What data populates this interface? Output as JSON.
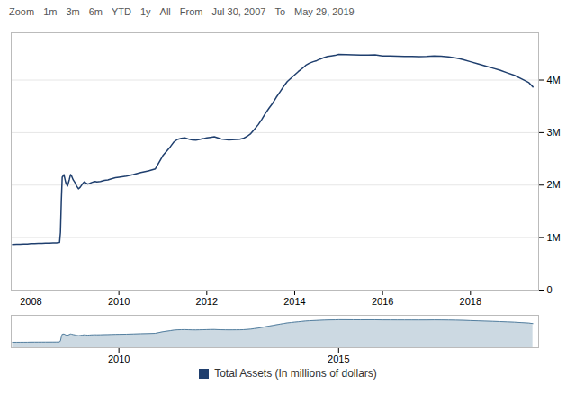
{
  "chart_data": [
    {
      "type": "line",
      "annotations": [
        "Zoom",
        "1m",
        "3m",
        "6m",
        "YTD",
        "1y",
        "All",
        "From",
        "Jul 30, 2007",
        "To",
        "May 29, 2019"
      ],
      "x": [
        2007.58,
        2007.67,
        2007.75,
        2007.83,
        2007.92,
        2008.0,
        2008.08,
        2008.17,
        2008.25,
        2008.33,
        2008.42,
        2008.5,
        2008.58,
        2008.65,
        2008.67,
        2008.69,
        2008.71,
        2008.75,
        2008.79,
        2008.83,
        2008.87,
        2008.9,
        2008.92,
        2008.96,
        2009.0,
        2009.04,
        2009.08,
        2009.12,
        2009.17,
        2009.21,
        2009.25,
        2009.29,
        2009.33,
        2009.38,
        2009.42,
        2009.46,
        2009.5,
        2009.58,
        2009.67,
        2009.75,
        2009.83,
        2009.92,
        2010.0,
        2010.17,
        2010.33,
        2010.5,
        2010.67,
        2010.83,
        2011.0,
        2011.17,
        2011.25,
        2011.33,
        2011.42,
        2011.5,
        2011.58,
        2011.67,
        2011.75,
        2011.83,
        2011.92,
        2012.0,
        2012.08,
        2012.17,
        2012.25,
        2012.33,
        2012.42,
        2012.5,
        2012.58,
        2012.67,
        2012.75,
        2012.83,
        2012.92,
        2013.0,
        2013.08,
        2013.17,
        2013.25,
        2013.33,
        2013.42,
        2013.5,
        2013.58,
        2013.67,
        2013.75,
        2013.83,
        2013.92,
        2014.0,
        2014.08,
        2014.17,
        2014.25,
        2014.33,
        2014.42,
        2014.5,
        2014.58,
        2014.67,
        2014.75,
        2014.83,
        2014.92,
        2015.0,
        2015.17,
        2015.33,
        2015.5,
        2015.67,
        2015.83,
        2016.0,
        2016.17,
        2016.33,
        2016.5,
        2016.67,
        2016.83,
        2017.0,
        2017.17,
        2017.33,
        2017.5,
        2017.67,
        2017.83,
        2018.0,
        2018.17,
        2018.33,
        2018.5,
        2018.67,
        2018.83,
        2019.0,
        2019.17,
        2019.33,
        2019.42
      ],
      "series": [
        {
          "name": "Total Assets (In millions of dollars)",
          "color": "#1f3f6e",
          "values": [
            870000,
            872000,
            875000,
            878000,
            880000,
            885000,
            888000,
            890000,
            892000,
            895000,
            897000,
            899000,
            901000,
            910000,
            1100000,
            1700000,
            2150000,
            2200000,
            2050000,
            1980000,
            2100000,
            2200000,
            2180000,
            2100000,
            2050000,
            1980000,
            1930000,
            1960000,
            2020000,
            2060000,
            2040000,
            2020000,
            2030000,
            2050000,
            2060000,
            2070000,
            2060000,
            2070000,
            2090000,
            2100000,
            2120000,
            2140000,
            2150000,
            2170000,
            2200000,
            2240000,
            2270000,
            2310000,
            2560000,
            2730000,
            2820000,
            2870000,
            2890000,
            2900000,
            2880000,
            2860000,
            2855000,
            2870000,
            2885000,
            2900000,
            2910000,
            2920000,
            2900000,
            2880000,
            2870000,
            2860000,
            2865000,
            2870000,
            2875000,
            2890000,
            2930000,
            2980000,
            3060000,
            3150000,
            3250000,
            3360000,
            3470000,
            3560000,
            3670000,
            3780000,
            3880000,
            3970000,
            4040000,
            4100000,
            4160000,
            4220000,
            4280000,
            4320000,
            4350000,
            4370000,
            4400000,
            4430000,
            4450000,
            4460000,
            4470000,
            4490000,
            4485000,
            4480000,
            4475000,
            4478000,
            4480000,
            4460000,
            4458000,
            4455000,
            4452000,
            4450000,
            4448000,
            4450000,
            4460000,
            4455000,
            4440000,
            4420000,
            4390000,
            4350000,
            4310000,
            4270000,
            4230000,
            4190000,
            4140000,
            4090000,
            4020000,
            3950000,
            3870000
          ]
        }
      ],
      "xlim": [
        2007.55,
        2019.55
      ],
      "xticks": [
        2008,
        2010,
        2012,
        2014,
        2016,
        2018
      ],
      "ylim": [
        0,
        4900000
      ],
      "yticks": [
        0,
        {
          "value": 1000000,
          "label": "1M"
        },
        {
          "value": 2000000,
          "label": "2M"
        },
        {
          "value": 3000000,
          "label": "3M"
        },
        {
          "value": 4000000,
          "label": "4M"
        }
      ],
      "grid": true,
      "legend": "bottom"
    },
    {
      "type": "area",
      "x": [
        2007.58,
        2007.67,
        2007.75,
        2007.83,
        2007.92,
        2008.0,
        2008.08,
        2008.17,
        2008.25,
        2008.33,
        2008.42,
        2008.5,
        2008.58,
        2008.65,
        2008.67,
        2008.69,
        2008.71,
        2008.75,
        2008.79,
        2008.83,
        2008.87,
        2008.9,
        2008.92,
        2008.96,
        2009.0,
        2009.04,
        2009.08,
        2009.12,
        2009.17,
        2009.21,
        2009.25,
        2009.29,
        2009.33,
        2009.38,
        2009.42,
        2009.46,
        2009.5,
        2009.58,
        2009.67,
        2009.75,
        2009.83,
        2009.92,
        2010.0,
        2010.17,
        2010.33,
        2010.5,
        2010.67,
        2010.83,
        2011.0,
        2011.17,
        2011.25,
        2011.33,
        2011.42,
        2011.5,
        2011.58,
        2011.67,
        2011.75,
        2011.83,
        2011.92,
        2012.0,
        2012.08,
        2012.17,
        2012.25,
        2012.33,
        2012.42,
        2012.5,
        2012.58,
        2012.67,
        2012.75,
        2012.83,
        2012.92,
        2013.0,
        2013.08,
        2013.17,
        2013.25,
        2013.33,
        2013.42,
        2013.5,
        2013.58,
        2013.67,
        2013.75,
        2013.83,
        2013.92,
        2014.0,
        2014.08,
        2014.17,
        2014.25,
        2014.33,
        2014.42,
        2014.5,
        2014.58,
        2014.67,
        2014.75,
        2014.83,
        2014.92,
        2015.0,
        2015.17,
        2015.33,
        2015.5,
        2015.67,
        2015.83,
        2016.0,
        2016.17,
        2016.33,
        2016.5,
        2016.67,
        2016.83,
        2017.0,
        2017.17,
        2017.33,
        2017.5,
        2017.67,
        2017.83,
        2018.0,
        2018.17,
        2018.33,
        2018.5,
        2018.67,
        2018.83,
        2019.0,
        2019.17,
        2019.33,
        2019.42
      ],
      "values": [
        870000,
        872000,
        875000,
        878000,
        880000,
        885000,
        888000,
        890000,
        892000,
        895000,
        897000,
        899000,
        901000,
        910000,
        1100000,
        1700000,
        2150000,
        2200000,
        2050000,
        1980000,
        2100000,
        2200000,
        2180000,
        2100000,
        2050000,
        1980000,
        1930000,
        1960000,
        2020000,
        2060000,
        2040000,
        2020000,
        2030000,
        2050000,
        2060000,
        2070000,
        2060000,
        2070000,
        2090000,
        2100000,
        2120000,
        2140000,
        2150000,
        2170000,
        2200000,
        2240000,
        2270000,
        2310000,
        2560000,
        2730000,
        2820000,
        2870000,
        2890000,
        2900000,
        2880000,
        2860000,
        2855000,
        2870000,
        2885000,
        2900000,
        2910000,
        2920000,
        2900000,
        2880000,
        2870000,
        2860000,
        2865000,
        2870000,
        2875000,
        2890000,
        2930000,
        2980000,
        3060000,
        3150000,
        3250000,
        3360000,
        3470000,
        3560000,
        3670000,
        3780000,
        3880000,
        3970000,
        4040000,
        4100000,
        4160000,
        4220000,
        4280000,
        4320000,
        4350000,
        4370000,
        4400000,
        4430000,
        4450000,
        4460000,
        4470000,
        4490000,
        4485000,
        4480000,
        4475000,
        4478000,
        4480000,
        4460000,
        4458000,
        4455000,
        4452000,
        4450000,
        4448000,
        4450000,
        4460000,
        4455000,
        4440000,
        4420000,
        4390000,
        4350000,
        4310000,
        4270000,
        4230000,
        4190000,
        4140000,
        4090000,
        4020000,
        3950000,
        3870000
      ],
      "color": "#5580a0",
      "xlim": [
        2007.55,
        2019.55
      ],
      "xticks": [
        2010,
        2015
      ],
      "ylim": [
        0,
        5200000
      ],
      "yticks": [],
      "tick_labels": "x"
    }
  ]
}
